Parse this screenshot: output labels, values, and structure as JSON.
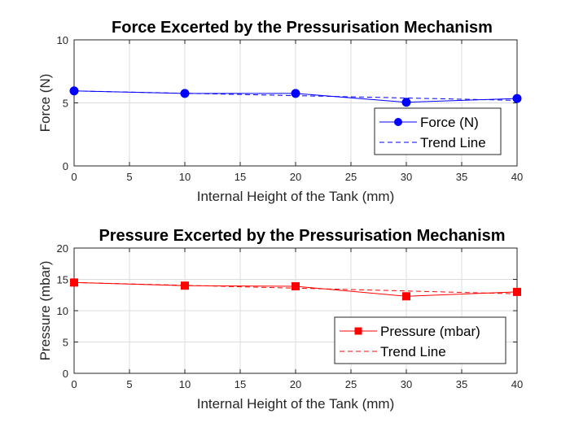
{
  "chart_data": [
    {
      "type": "line",
      "title": "Force Excerted by the Pressurisation Mechanism",
      "xlabel": "Internal Height of the Tank (mm)",
      "ylabel": "Force (N)",
      "xlim": [
        0,
        40
      ],
      "ylim": [
        0,
        10
      ],
      "xticks": [
        0,
        5,
        10,
        15,
        20,
        25,
        30,
        35,
        40
      ],
      "yticks": [
        0,
        5,
        10
      ],
      "grid": true,
      "legend_position": "lower-right",
      "series": [
        {
          "name": "Force (N)",
          "style": "solid",
          "marker": "circle",
          "color": "#0000ff",
          "x": [
            0,
            10,
            20,
            30,
            40
          ],
          "y": [
            5.95,
            5.75,
            5.75,
            5.05,
            5.35
          ]
        },
        {
          "name": "Trend Line",
          "style": "dashed",
          "marker": "none",
          "color": "#0000ff",
          "x": [
            0,
            40
          ],
          "y": [
            5.95,
            5.2
          ]
        }
      ]
    },
    {
      "type": "line",
      "title": "Pressure Excerted by the Pressurisation Mechanism",
      "xlabel": "Internal Height of the Tank (mm)",
      "ylabel": "Pressure (mbar)",
      "xlim": [
        0,
        40
      ],
      "ylim": [
        0,
        20
      ],
      "xticks": [
        0,
        5,
        10,
        15,
        20,
        25,
        30,
        35,
        40
      ],
      "yticks": [
        0,
        5,
        10,
        15,
        20
      ],
      "grid": true,
      "legend_position": "lower-right",
      "series": [
        {
          "name": "Pressure (mbar)",
          "style": "solid",
          "marker": "square",
          "color": "#ff0000",
          "x": [
            0,
            10,
            20,
            30,
            40
          ],
          "y": [
            14.5,
            14.0,
            13.9,
            12.3,
            13.0
          ]
        },
        {
          "name": "Trend Line",
          "style": "dashed",
          "marker": "none",
          "color": "#ff0000",
          "x": [
            0,
            40
          ],
          "y": [
            14.5,
            12.7
          ]
        }
      ]
    }
  ]
}
